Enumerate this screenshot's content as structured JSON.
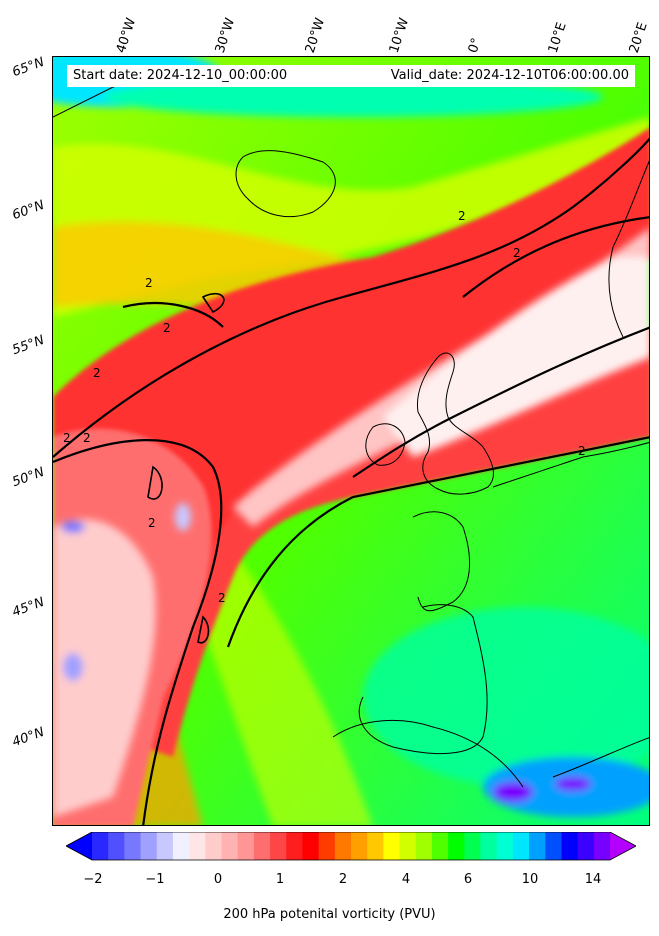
{
  "header": {
    "start_date": "Start date: 2024-12-10_00:00:00",
    "valid_date": "Valid_date: 2024-12-10T06:00:00.00"
  },
  "longitude_labels": [
    "40°W",
    "30°W",
    "20°W",
    "10°W",
    "0°",
    "10°E",
    "20°E"
  ],
  "latitude_labels": [
    "65°N",
    "60°N",
    "55°N",
    "50°N",
    "45°N",
    "40°N"
  ],
  "contour_label": "2",
  "colorbar": {
    "ticks": [
      "−2",
      "−1",
      "0",
      "1",
      "2",
      "4",
      "6",
      "10",
      "14"
    ],
    "title": "200 hPa potenital vorticity (PVU)",
    "colors": [
      "#0000ff",
      "#2828ff",
      "#5050ff",
      "#7878ff",
      "#a0a0ff",
      "#c8c8ff",
      "#f0f0ff",
      "#ffe6e6",
      "#ffcccc",
      "#ffb2b2",
      "#ff9696",
      "#ff6e6e",
      "#ff4646",
      "#ff1e1e",
      "#ff0000",
      "#ff3c00",
      "#ff7800",
      "#ffa000",
      "#ffc800",
      "#ffff00",
      "#d2ff00",
      "#a0ff00",
      "#50ff00",
      "#00ff00",
      "#00ff50",
      "#00ffa0",
      "#00ffd2",
      "#00e6ff",
      "#00a0ff",
      "#0050ff",
      "#0000ff",
      "#3c00ff",
      "#7800ff",
      "#b400ff"
    ]
  }
}
